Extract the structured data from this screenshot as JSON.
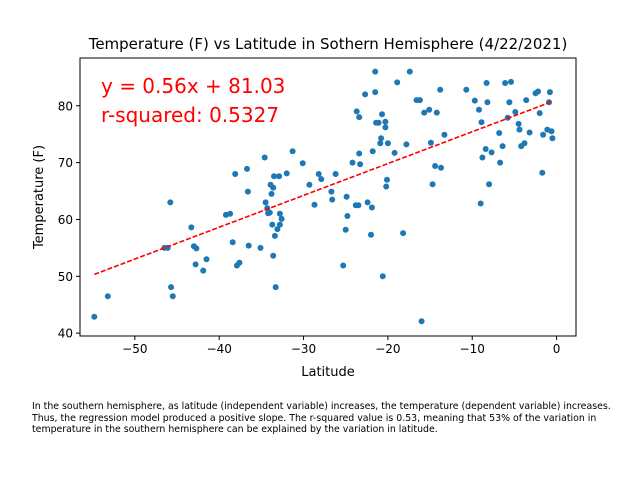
{
  "colors": {
    "point": "#1f77b4",
    "regression": "#ff0000",
    "annotation": "#ff0000"
  },
  "chart_data": {
    "type": "scatter",
    "title": "Temperature (F) vs Latitude in Sothern Hemisphere (4/22/2021)",
    "xlabel": "Latitude",
    "ylabel": "Temperature (F)",
    "xlim": [
      -56.5,
      2.3
    ],
    "ylim": [
      39.5,
      88.4
    ],
    "xticks": [
      -50,
      -40,
      -30,
      -20,
      -10,
      0
    ],
    "xtick_labels": [
      "−50",
      "−40",
      "−30",
      "−20",
      "−10",
      "0"
    ],
    "yticks": [
      40,
      50,
      60,
      70,
      80
    ],
    "ytick_labels": [
      "40",
      "50",
      "60",
      "70",
      "80"
    ],
    "grid": false,
    "regression": {
      "slope": 0.56,
      "intercept": 81.03,
      "x_start": -54.8,
      "x_end": -0.5
    },
    "annotations": [
      "y = 0.56x + 81.03",
      "r-squared: 0.5327"
    ],
    "points": [
      [
        -54.8,
        42.9
      ],
      [
        -53.2,
        46.5
      ],
      [
        -46.5,
        55.0
      ],
      [
        -46.1,
        55.0
      ],
      [
        -45.8,
        63.0
      ],
      [
        -45.7,
        48.1
      ],
      [
        -45.5,
        46.5
      ],
      [
        -43.3,
        58.6
      ],
      [
        -43.0,
        55.3
      ],
      [
        -42.8,
        52.1
      ],
      [
        -42.7,
        54.9
      ],
      [
        -41.9,
        51.0
      ],
      [
        -41.5,
        53.0
      ],
      [
        -39.2,
        60.8
      ],
      [
        -38.7,
        61.0
      ],
      [
        -38.4,
        56.0
      ],
      [
        -38.1,
        68.0
      ],
      [
        -37.9,
        51.9
      ],
      [
        -37.6,
        52.4
      ],
      [
        -36.7,
        68.9
      ],
      [
        -36.6,
        64.9
      ],
      [
        -36.5,
        55.4
      ],
      [
        -35.1,
        55.0
      ],
      [
        -34.6,
        70.9
      ],
      [
        -34.5,
        63.0
      ],
      [
        -34.3,
        62.0
      ],
      [
        -34.2,
        61.1
      ],
      [
        -34.0,
        61.2
      ],
      [
        -33.9,
        66.1
      ],
      [
        -33.8,
        64.5
      ],
      [
        -33.7,
        59.1
      ],
      [
        -33.6,
        53.6
      ],
      [
        -33.6,
        65.6
      ],
      [
        -33.5,
        67.6
      ],
      [
        -33.4,
        57.1
      ],
      [
        -33.3,
        48.1
      ],
      [
        -33.1,
        58.3
      ],
      [
        -32.9,
        67.6
      ],
      [
        -32.8,
        59.1
      ],
      [
        -32.8,
        61.0
      ],
      [
        -32.6,
        60.1
      ],
      [
        -32.0,
        68.1
      ],
      [
        -31.3,
        72.0
      ],
      [
        -30.1,
        69.9
      ],
      [
        -29.3,
        66.1
      ],
      [
        -28.7,
        62.6
      ],
      [
        -28.2,
        68.0
      ],
      [
        -27.9,
        67.1
      ],
      [
        -26.7,
        64.9
      ],
      [
        -26.6,
        63.5
      ],
      [
        -26.2,
        68.0
      ],
      [
        -25.3,
        51.9
      ],
      [
        -25.0,
        58.2
      ],
      [
        -24.9,
        64.0
      ],
      [
        -24.8,
        60.6
      ],
      [
        -24.2,
        70.0
      ],
      [
        -23.8,
        62.5
      ],
      [
        -23.7,
        79.0
      ],
      [
        -23.5,
        62.5
      ],
      [
        -23.4,
        78.0
      ],
      [
        -23.4,
        71.6
      ],
      [
        -23.3,
        69.7
      ],
      [
        -22.7,
        82.0
      ],
      [
        -22.4,
        63.0
      ],
      [
        -22.0,
        57.3
      ],
      [
        -21.9,
        62.1
      ],
      [
        -21.8,
        72.0
      ],
      [
        -21.5,
        86.0
      ],
      [
        -21.5,
        82.4
      ],
      [
        -21.4,
        77.0
      ],
      [
        -21.1,
        77.0
      ],
      [
        -20.9,
        73.4
      ],
      [
        -20.8,
        74.3
      ],
      [
        -20.7,
        78.5
      ],
      [
        -20.6,
        50.0
      ],
      [
        -20.3,
        77.2
      ],
      [
        -20.3,
        76.2
      ],
      [
        -20.2,
        65.8
      ],
      [
        -20.1,
        67.0
      ],
      [
        -20.0,
        73.4
      ],
      [
        -19.2,
        71.7
      ],
      [
        -18.9,
        84.1
      ],
      [
        -18.2,
        57.6
      ],
      [
        -17.8,
        73.2
      ],
      [
        -17.4,
        86.0
      ],
      [
        -16.6,
        81.0
      ],
      [
        -16.2,
        81.0
      ],
      [
        -16.0,
        42.1
      ],
      [
        -15.7,
        78.8
      ],
      [
        -15.1,
        79.3
      ],
      [
        -14.9,
        73.5
      ],
      [
        -14.7,
        66.2
      ],
      [
        -14.4,
        69.4
      ],
      [
        -14.2,
        78.8
      ],
      [
        -13.8,
        82.8
      ],
      [
        -13.7,
        69.1
      ],
      [
        -13.3,
        74.9
      ],
      [
        -10.7,
        82.8
      ],
      [
        -9.7,
        80.9
      ],
      [
        -9.2,
        79.3
      ],
      [
        -9.0,
        62.8
      ],
      [
        -8.9,
        77.1
      ],
      [
        -8.8,
        70.9
      ],
      [
        -8.4,
        72.4
      ],
      [
        -8.3,
        84.0
      ],
      [
        -8.2,
        80.6
      ],
      [
        -8.0,
        66.2
      ],
      [
        -7.7,
        71.8
      ],
      [
        -6.8,
        75.2
      ],
      [
        -6.7,
        70.0
      ],
      [
        -6.4,
        72.9
      ],
      [
        -6.1,
        84.0
      ],
      [
        -5.8,
        77.9
      ],
      [
        -5.6,
        80.6
      ],
      [
        -5.4,
        84.2
      ],
      [
        -4.9,
        78.9
      ],
      [
        -4.5,
        76.8
      ],
      [
        -4.4,
        75.8
      ],
      [
        -4.2,
        72.9
      ],
      [
        -3.8,
        73.4
      ],
      [
        -3.6,
        81.0
      ],
      [
        -3.2,
        75.3
      ],
      [
        -2.5,
        82.2
      ],
      [
        -2.2,
        82.5
      ],
      [
        -2.0,
        78.7
      ],
      [
        -1.7,
        68.2
      ],
      [
        -1.6,
        74.9
      ],
      [
        -1.1,
        75.8
      ],
      [
        -0.9,
        80.6
      ],
      [
        -0.8,
        82.4
      ],
      [
        -0.6,
        75.5
      ],
      [
        -0.5,
        74.3
      ]
    ]
  },
  "caption": "In the southern hemisphere, as latitude (independent variable) increases, the temperature (dependent variable) increases. Thus, the regression model produced a positive slope. The r-squared value is 0.53, meaning that 53% of the variation in temperature in the southern hemisphere can be explained by the variation in latitude."
}
